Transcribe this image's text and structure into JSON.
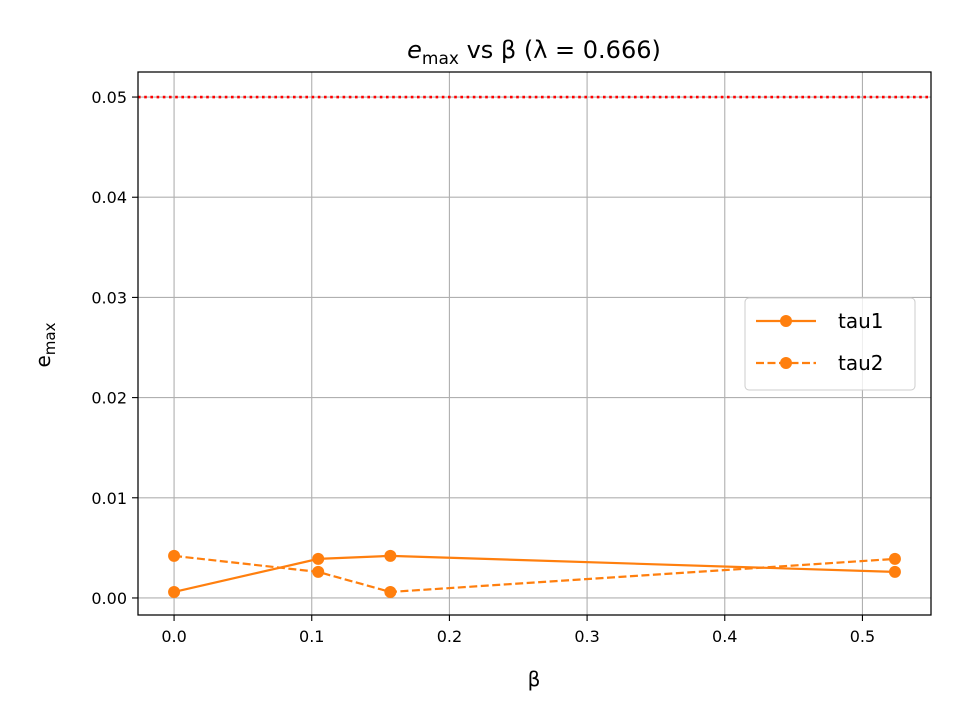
{
  "chart_data": {
    "type": "line",
    "title": {
      "var": "e",
      "sub": "max",
      "rest": " vs β (λ = 0.666)"
    },
    "xlabel": "β",
    "ylabel": {
      "var": "e",
      "sub": "max"
    },
    "xlim": [
      -0.0262,
      0.5498
    ],
    "ylim": [
      -0.0017,
      0.0525
    ],
    "xticks": [
      0.0,
      0.1,
      0.2,
      0.3,
      0.4,
      0.5
    ],
    "xtick_labels": [
      "0.0",
      "0.1",
      "0.2",
      "0.3",
      "0.4",
      "0.5"
    ],
    "yticks": [
      0.0,
      0.01,
      0.02,
      0.03,
      0.04,
      0.05
    ],
    "ytick_labels": [
      "0.00",
      "0.01",
      "0.02",
      "0.03",
      "0.04",
      "0.05"
    ],
    "grid": true,
    "legend_position": "center-right",
    "series": [
      {
        "name": "tau1",
        "style": "solid",
        "color": "#ff7f0e",
        "x": [
          0.0,
          0.1047,
          0.1571,
          0.5236
        ],
        "y": [
          0.0006,
          0.0039,
          0.0042,
          0.0026
        ]
      },
      {
        "name": "tau2",
        "style": "dashed",
        "color": "#ff7f0e",
        "x": [
          0.0,
          0.1047,
          0.1571,
          0.5236
        ],
        "y": [
          0.0042,
          0.0026,
          0.0006,
          0.0039
        ]
      }
    ],
    "reference_lines": [
      {
        "axis": "y",
        "value": 0.05,
        "style": "dotted",
        "color": "#ff0000"
      }
    ]
  }
}
